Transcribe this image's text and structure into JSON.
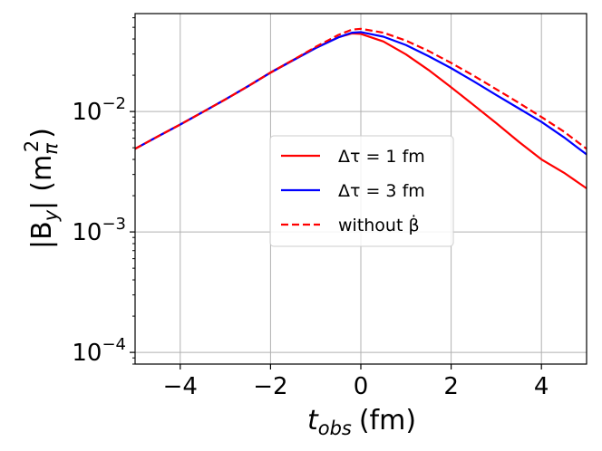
{
  "chart_data": {
    "type": "line",
    "xlabel": {
      "symbol": "t",
      "subscript": "obs",
      "unit": "(fm)"
    },
    "ylabel": {
      "prefix": "|B",
      "subscript": "y",
      "suffix": "|",
      "unit_open": "(m",
      "unit_sub": "π",
      "unit_sup": "2",
      "unit_close": ")"
    },
    "xlim": [
      -5,
      5
    ],
    "ylim": [
      8e-05,
      0.065
    ],
    "yscale": "log",
    "grid": true,
    "legend_position": "center-right",
    "x_ticks": [
      {
        "value": -4,
        "label": "−4"
      },
      {
        "value": -2,
        "label": "−2"
      },
      {
        "value": 0,
        "label": "0"
      },
      {
        "value": 2,
        "label": "2"
      },
      {
        "value": 4,
        "label": "4"
      }
    ],
    "y_ticks": [
      {
        "value": 0.0001,
        "base": "10",
        "exp": "−4"
      },
      {
        "value": 0.001,
        "base": "10",
        "exp": "−3"
      },
      {
        "value": 0.01,
        "base": "10",
        "exp": "−2"
      }
    ],
    "series": [
      {
        "name": "Δτ = 1 fm",
        "color": "#ff0000",
        "dash": "solid",
        "x": [
          -5,
          -4.5,
          -4,
          -3.5,
          -3,
          -2.5,
          -2,
          -1.5,
          -1,
          -0.5,
          -0.2,
          0,
          0.5,
          1,
          1.5,
          2,
          2.5,
          3,
          3.5,
          4,
          4.5,
          5
        ],
        "y": [
          0.0049,
          0.0062,
          0.0078,
          0.0099,
          0.0126,
          0.0162,
          0.0211,
          0.0268,
          0.0338,
          0.0413,
          0.0445,
          0.0441,
          0.0381,
          0.0298,
          0.0221,
          0.0159,
          0.0113,
          0.008,
          0.0056,
          0.004,
          0.0031,
          0.0023
        ]
      },
      {
        "name": "Δτ = 3 fm",
        "color": "#0000ff",
        "dash": "solid",
        "x": [
          -5,
          -4.5,
          -4,
          -3.5,
          -3,
          -2.5,
          -2,
          -1.5,
          -1,
          -0.5,
          -0.2,
          0,
          0.5,
          1,
          1.5,
          2,
          2.5,
          3,
          3.5,
          4,
          4.5,
          5
        ],
        "y": [
          0.0049,
          0.0062,
          0.0078,
          0.0099,
          0.0126,
          0.0162,
          0.021,
          0.0266,
          0.0336,
          0.0412,
          0.0451,
          0.0456,
          0.0418,
          0.0356,
          0.0288,
          0.0229,
          0.0178,
          0.0137,
          0.0106,
          0.0082,
          0.0061,
          0.0044
        ]
      },
      {
        "name": "without β̇",
        "color": "#ff0000",
        "dash": "dashed",
        "x": [
          -5,
          -4.5,
          -4,
          -3.5,
          -3,
          -2.5,
          -2,
          -1.5,
          -1,
          -0.5,
          -0.2,
          0,
          0.5,
          1,
          1.5,
          2,
          2.5,
          3,
          3.5,
          4,
          4.5,
          5
        ],
        "y": [
          0.0049,
          0.0062,
          0.0078,
          0.0099,
          0.0126,
          0.0162,
          0.021,
          0.0268,
          0.0344,
          0.0432,
          0.0478,
          0.0486,
          0.0451,
          0.0388,
          0.0318,
          0.0253,
          0.0198,
          0.0153,
          0.0118,
          0.009,
          0.0068,
          0.0049
        ]
      }
    ],
    "legend": [
      {
        "label": "Δτ = 1 fm",
        "color": "#ff0000",
        "dash": "solid"
      },
      {
        "label": "Δτ = 3 fm",
        "color": "#0000ff",
        "dash": "solid"
      },
      {
        "label": "without β̇",
        "color": "#ff0000",
        "dash": "dashed"
      }
    ]
  }
}
